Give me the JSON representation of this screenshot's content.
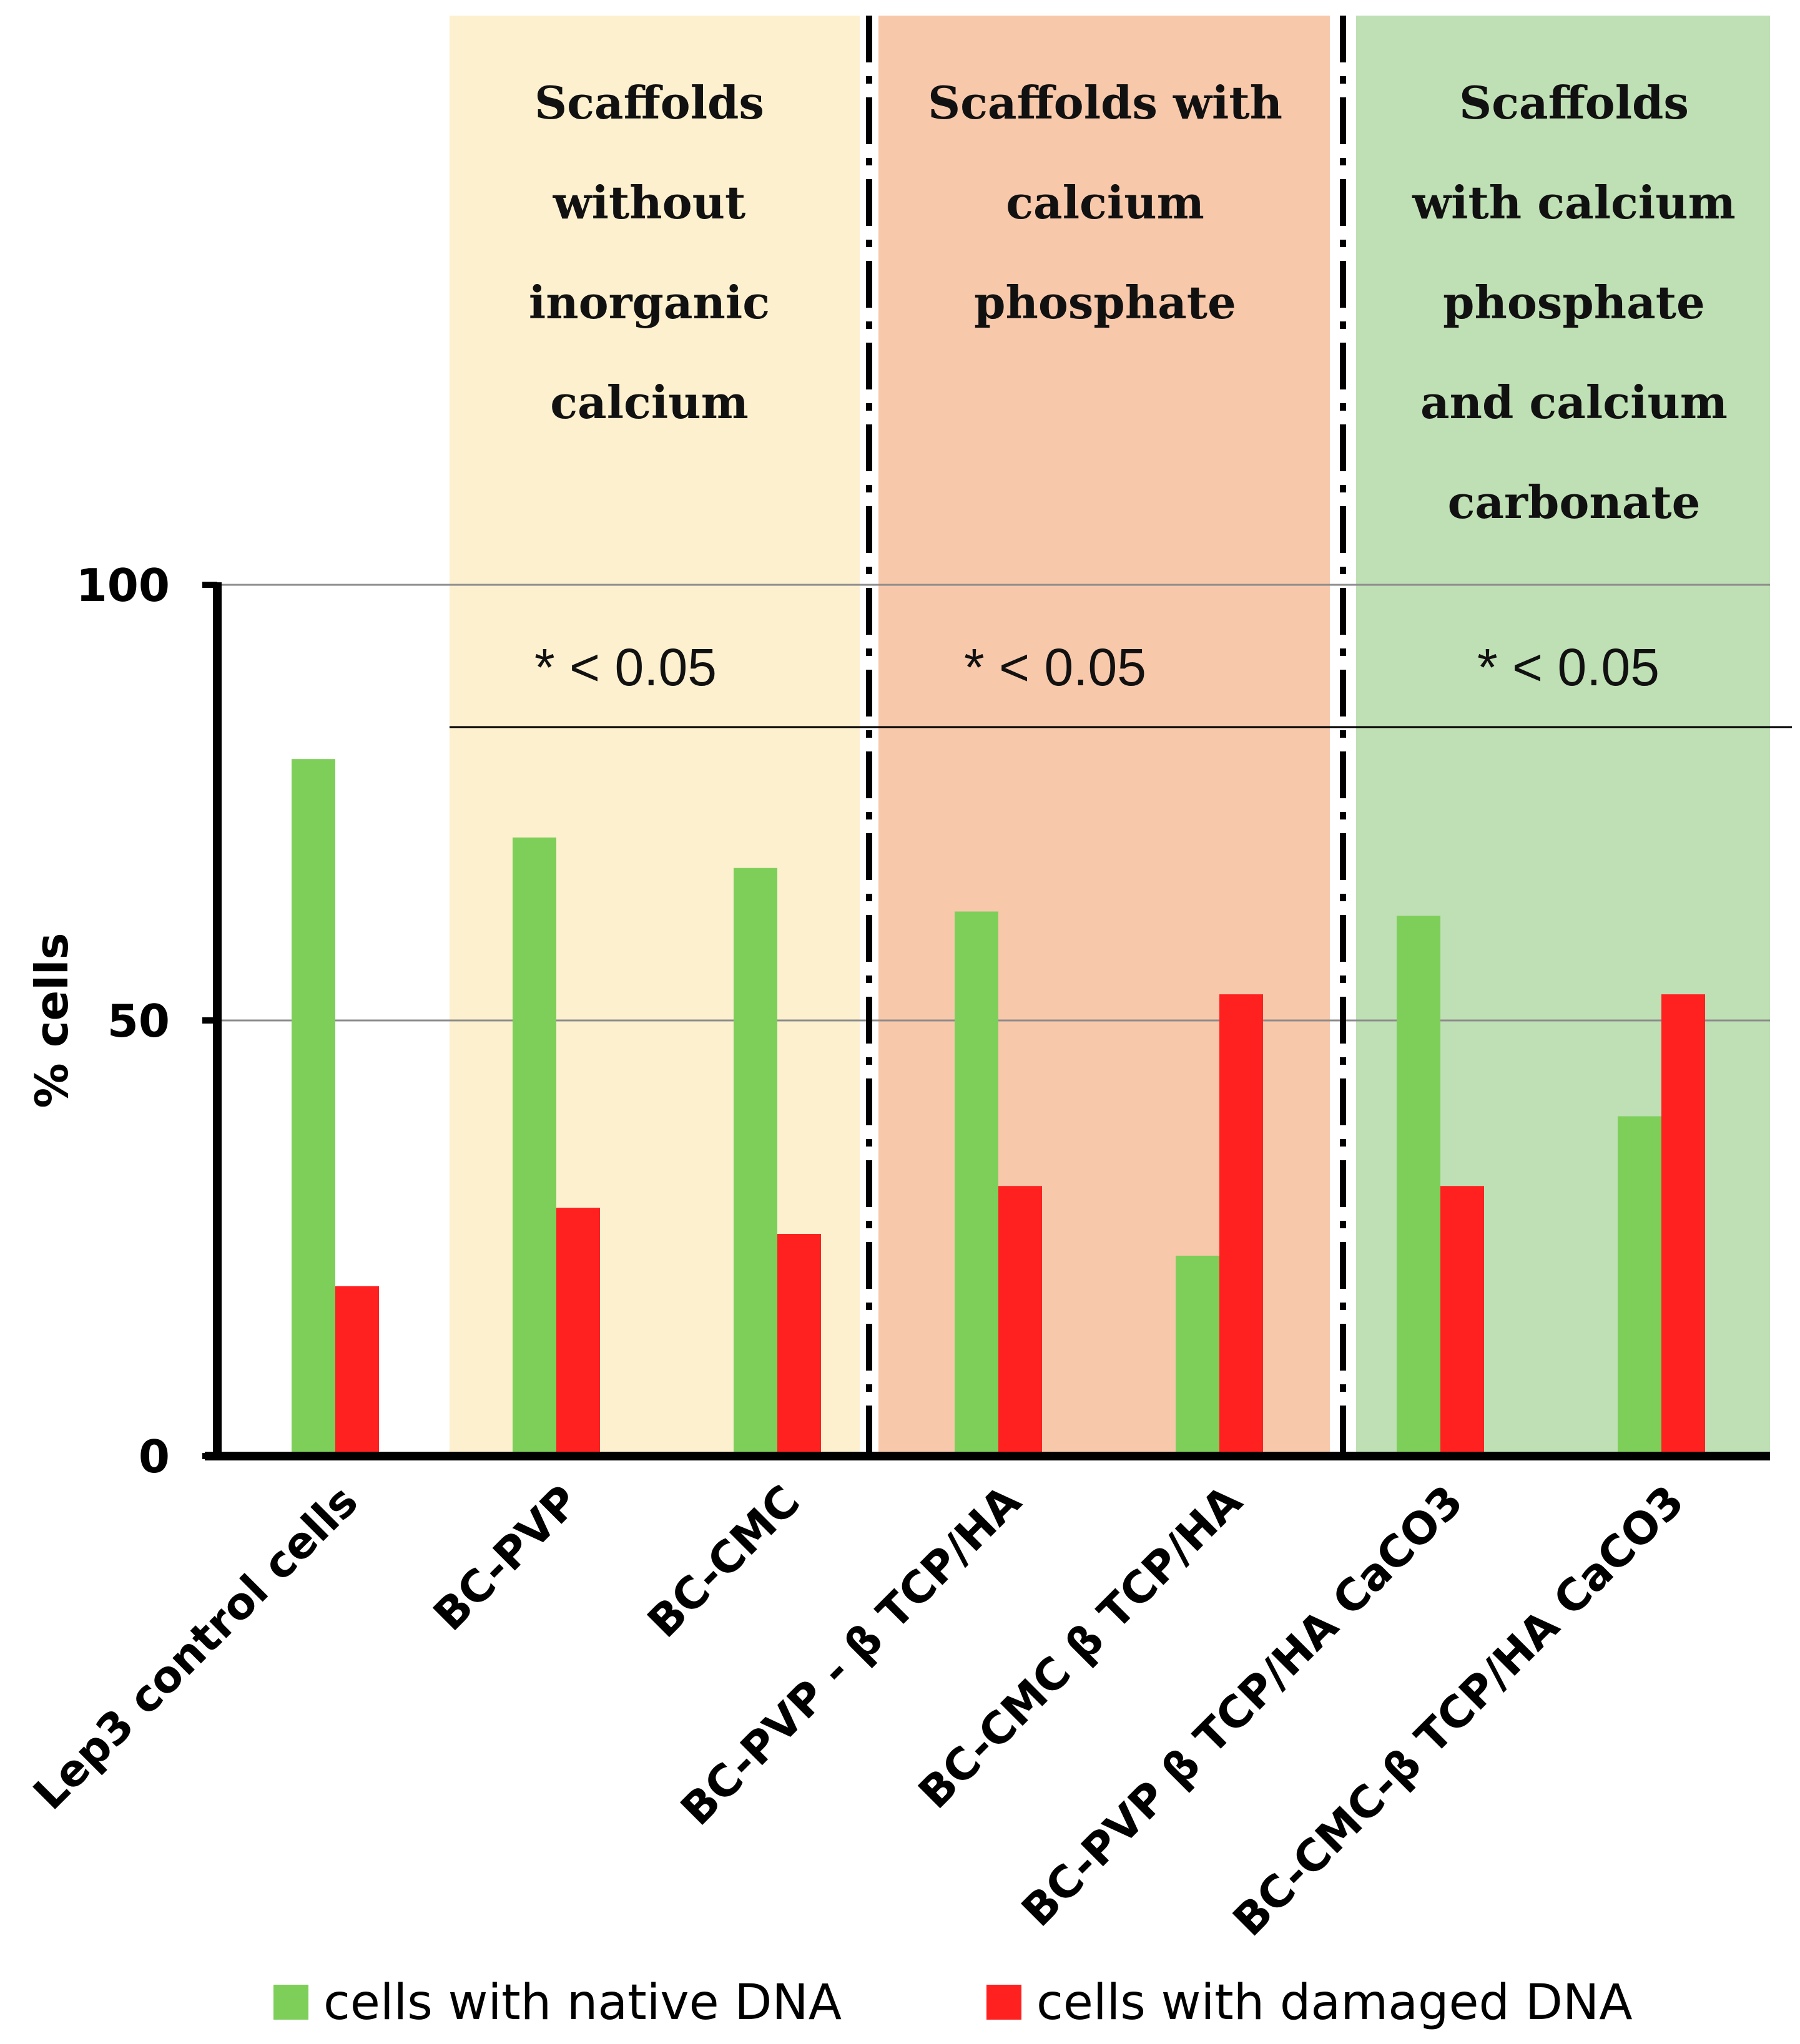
{
  "chart_data": {
    "type": "bar",
    "title": "",
    "xlabel": "",
    "ylabel": "% cells",
    "ylim": [
      0,
      100
    ],
    "yticks": [
      0,
      50,
      100
    ],
    "grid": "horizontal",
    "legend_position": "bottom",
    "categories": [
      "Lep3 control cells",
      "BC-PVP",
      "BC-CMC",
      "BC-PVP - β TCP/HA",
      "BC-CMC β TCP/HA",
      "BC-PVP β TCP/HA CaCO3",
      "BC-CMC-β TCP/HA CaCO3"
    ],
    "series": [
      {
        "name": "cells with native DNA",
        "color": "#7dcf59",
        "values": [
          80,
          71,
          67.5,
          62.5,
          23,
          62,
          39
        ]
      },
      {
        "name": "cells with damaged DNA",
        "color": "#ff2020",
        "values": [
          19.5,
          28.5,
          25.5,
          31,
          53,
          31,
          53
        ]
      }
    ],
    "groups": [
      {
        "title_lines": [
          "Scaffolds",
          "without",
          "inorganic",
          "calcium"
        ],
        "significance": "* < 0.05",
        "color": "#fdf0cf",
        "categories": [
          1,
          2
        ]
      },
      {
        "title_lines": [
          "Scaffolds with",
          "calcium",
          "phosphate"
        ],
        "significance": "* < 0.05",
        "color": "#f8c8ab",
        "categories": [
          3,
          4
        ]
      },
      {
        "title_lines": [
          "Scaffolds",
          "with calcium",
          "phosphate",
          "and calcium",
          "carbonate"
        ],
        "significance": "* < 0.05",
        "color": "#bfdfb4",
        "categories": [
          5,
          6
        ]
      }
    ]
  }
}
